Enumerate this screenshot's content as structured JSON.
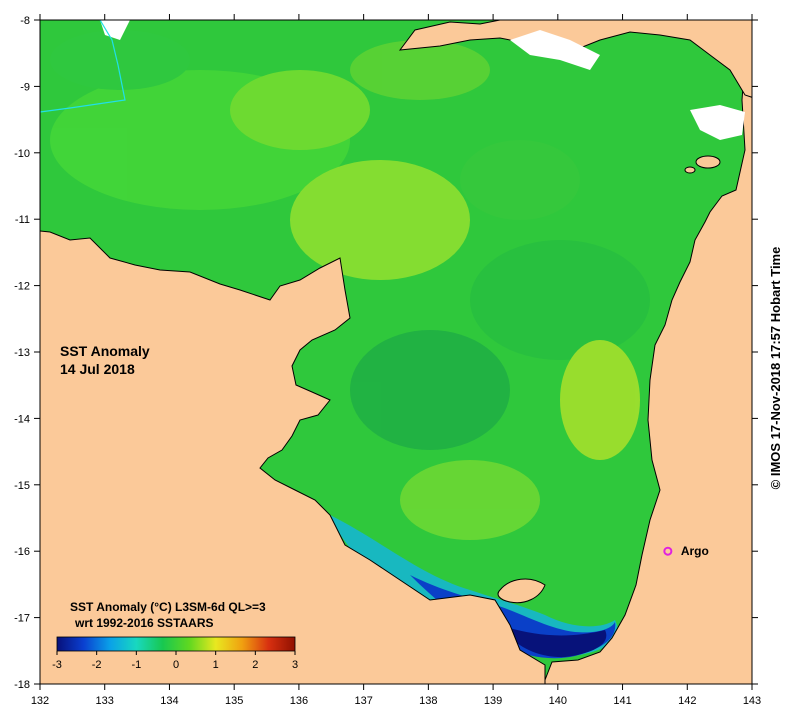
{
  "map": {
    "title_line1": "SST Anomaly",
    "title_line2": "14 Jul 2018",
    "x_ticks": [
      "132",
      "133",
      "134",
      "135",
      "136",
      "137",
      "138",
      "139",
      "140",
      "141",
      "142",
      "143"
    ],
    "y_ticks": [
      "-8",
      "-9",
      "-10",
      "-11",
      "-12",
      "-13",
      "-14",
      "-15",
      "-16",
      "-17",
      "-18"
    ],
    "lon_range": [
      132,
      143
    ],
    "lat_range": [
      -18,
      -8
    ],
    "land_color": "#fbc999",
    "argo": {
      "label": "Argo",
      "lon": 141.7,
      "lat": -16.0,
      "color": "#e020e0"
    },
    "colorbar": {
      "title_line1": "SST Anomaly (°C) L3SM-6d QL>=3",
      "title_line2": "wrt 1992-2016 SSTAARS",
      "ticks": [
        "-3",
        "-2",
        "-1",
        "0",
        "1",
        "2",
        "3"
      ],
      "range": [
        -3,
        3
      ],
      "colors": [
        "#08107a",
        "#0a3fd0",
        "#0aa0e8",
        "#18d8c0",
        "#18c850",
        "#60d820",
        "#e8e820",
        "#f0a010",
        "#d83010",
        "#901000"
      ]
    },
    "credit": "© IMOS 17-Nov-2018 17:57 Hobart Time"
  }
}
